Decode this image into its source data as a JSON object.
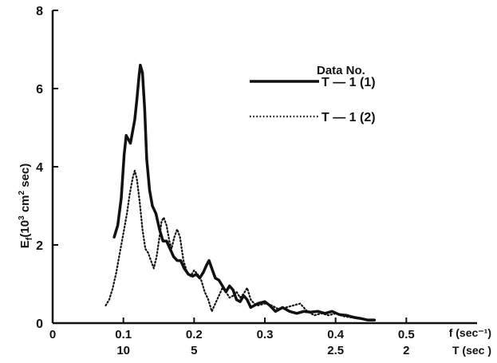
{
  "chart_data": {
    "type": "line",
    "xlabel": "f (sec⁻¹)",
    "xlabel2": "T (sec )",
    "ylabel": "E",
    "ylabel_sub": "f",
    "ylabel_unit_pre": "(10",
    "ylabel_unit_exp1": "3",
    "ylabel_unit_mid": " cm",
    "ylabel_unit_exp2": "2",
    "ylabel_unit_post": " sec)",
    "xlim": [
      0,
      0.6
    ],
    "ylim": [
      0,
      8
    ],
    "x_ticks": [
      {
        "value": 0,
        "label": "0"
      },
      {
        "value": 0.1,
        "label": "0.1"
      },
      {
        "value": 0.2,
        "label": "0.2"
      },
      {
        "value": 0.3,
        "label": "0.3"
      },
      {
        "value": 0.4,
        "label": "0.4"
      },
      {
        "value": 0.5,
        "label": "0.5"
      }
    ],
    "t_ticks": [
      {
        "value": 0.1,
        "label": "10"
      },
      {
        "value": 0.2,
        "label": "5"
      },
      {
        "value": 0.4,
        "label": "2.5"
      },
      {
        "value": 0.5,
        "label": "2"
      }
    ],
    "y_ticks": [
      0,
      2,
      4,
      6,
      8
    ],
    "legend_title": "Data No.",
    "legend_position": "top-right",
    "series": [
      {
        "name": "T — 1 (1)",
        "style": "solid",
        "color": "#111111",
        "points": [
          [
            0.087,
            2.2
          ],
          [
            0.092,
            2.5
          ],
          [
            0.097,
            3.2
          ],
          [
            0.101,
            4.3
          ],
          [
            0.104,
            4.8
          ],
          [
            0.107,
            4.7
          ],
          [
            0.11,
            4.6
          ],
          [
            0.113,
            4.9
          ],
          [
            0.116,
            5.2
          ],
          [
            0.119,
            5.7
          ],
          [
            0.122,
            6.3
          ],
          [
            0.124,
            6.6
          ],
          [
            0.127,
            6.4
          ],
          [
            0.13,
            5.5
          ],
          [
            0.133,
            4.2
          ],
          [
            0.137,
            3.4
          ],
          [
            0.141,
            3.0
          ],
          [
            0.146,
            2.8
          ],
          [
            0.151,
            2.4
          ],
          [
            0.156,
            2.1
          ],
          [
            0.161,
            2.1
          ],
          [
            0.166,
            1.9
          ],
          [
            0.171,
            1.7
          ],
          [
            0.176,
            1.6
          ],
          [
            0.181,
            1.6
          ],
          [
            0.186,
            1.4
          ],
          [
            0.192,
            1.25
          ],
          [
            0.198,
            1.2
          ],
          [
            0.203,
            1.25
          ],
          [
            0.208,
            1.15
          ],
          [
            0.213,
            1.3
          ],
          [
            0.218,
            1.5
          ],
          [
            0.221,
            1.6
          ],
          [
            0.225,
            1.4
          ],
          [
            0.23,
            1.15
          ],
          [
            0.235,
            1.1
          ],
          [
            0.24,
            0.95
          ],
          [
            0.245,
            0.8
          ],
          [
            0.25,
            0.95
          ],
          [
            0.255,
            0.85
          ],
          [
            0.26,
            0.6
          ],
          [
            0.265,
            0.55
          ],
          [
            0.27,
            0.7
          ],
          [
            0.275,
            0.6
          ],
          [
            0.28,
            0.4
          ],
          [
            0.29,
            0.5
          ],
          [
            0.3,
            0.55
          ],
          [
            0.307,
            0.45
          ],
          [
            0.315,
            0.3
          ],
          [
            0.325,
            0.4
          ],
          [
            0.335,
            0.3
          ],
          [
            0.345,
            0.25
          ],
          [
            0.355,
            0.3
          ],
          [
            0.365,
            0.28
          ],
          [
            0.375,
            0.3
          ],
          [
            0.385,
            0.25
          ],
          [
            0.395,
            0.3
          ],
          [
            0.405,
            0.22
          ],
          [
            0.415,
            0.2
          ],
          [
            0.425,
            0.15
          ],
          [
            0.435,
            0.12
          ],
          [
            0.445,
            0.08
          ],
          [
            0.455,
            0.08
          ]
        ]
      },
      {
        "name": "T — 1 (2)",
        "style": "dotted",
        "color": "#111111",
        "points": [
          [
            0.075,
            0.45
          ],
          [
            0.08,
            0.6
          ],
          [
            0.085,
            0.9
          ],
          [
            0.09,
            1.3
          ],
          [
            0.095,
            1.8
          ],
          [
            0.1,
            2.3
          ],
          [
            0.105,
            2.8
          ],
          [
            0.109,
            3.3
          ],
          [
            0.113,
            3.7
          ],
          [
            0.116,
            3.9
          ],
          [
            0.119,
            3.7
          ],
          [
            0.123,
            3.1
          ],
          [
            0.127,
            2.4
          ],
          [
            0.131,
            1.9
          ],
          [
            0.135,
            1.8
          ],
          [
            0.139,
            1.6
          ],
          [
            0.143,
            1.4
          ],
          [
            0.147,
            1.7
          ],
          [
            0.151,
            2.2
          ],
          [
            0.154,
            2.6
          ],
          [
            0.157,
            2.7
          ],
          [
            0.161,
            2.5
          ],
          [
            0.165,
            2.1
          ],
          [
            0.168,
            1.9
          ],
          [
            0.172,
            2.2
          ],
          [
            0.176,
            2.4
          ],
          [
            0.18,
            2.2
          ],
          [
            0.185,
            1.6
          ],
          [
            0.19,
            1.3
          ],
          [
            0.195,
            1.2
          ],
          [
            0.2,
            1.35
          ],
          [
            0.205,
            1.25
          ],
          [
            0.21,
            1.1
          ],
          [
            0.215,
            0.8
          ],
          [
            0.22,
            0.6
          ],
          [
            0.225,
            0.3
          ],
          [
            0.23,
            0.5
          ],
          [
            0.235,
            0.7
          ],
          [
            0.24,
            0.9
          ],
          [
            0.245,
            0.8
          ],
          [
            0.25,
            0.65
          ],
          [
            0.255,
            0.7
          ],
          [
            0.26,
            0.8
          ],
          [
            0.265,
            0.65
          ],
          [
            0.27,
            0.75
          ],
          [
            0.275,
            0.9
          ],
          [
            0.28,
            0.6
          ],
          [
            0.285,
            0.5
          ],
          [
            0.29,
            0.45
          ],
          [
            0.3,
            0.5
          ],
          [
            0.31,
            0.45
          ],
          [
            0.32,
            0.35
          ],
          [
            0.33,
            0.4
          ],
          [
            0.34,
            0.45
          ],
          [
            0.35,
            0.5
          ],
          [
            0.36,
            0.3
          ],
          [
            0.37,
            0.2
          ],
          [
            0.38,
            0.25
          ],
          [
            0.39,
            0.2
          ],
          [
            0.4,
            0.25
          ],
          [
            0.41,
            0.18
          ],
          [
            0.42,
            0.15
          ],
          [
            0.43,
            0.12
          ],
          [
            0.44,
            0.1
          ],
          [
            0.45,
            0.08
          ]
        ]
      }
    ]
  }
}
